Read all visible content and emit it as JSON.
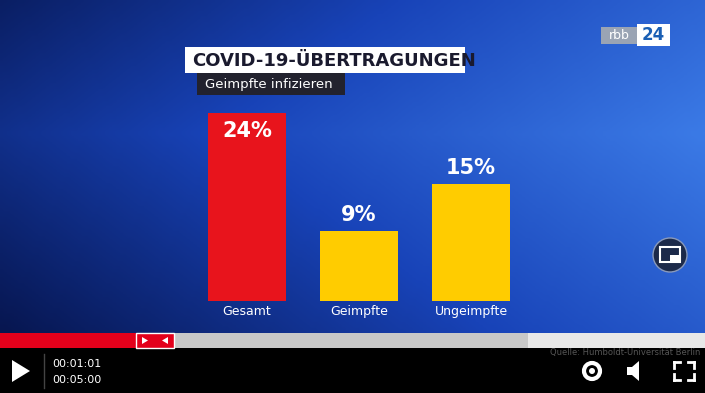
{
  "chart_data": {
    "type": "bar",
    "title": "COVID-19-ÜBERTRAGUNGEN",
    "subtitle": "Geimpfte infizieren",
    "categories": [
      "Gesamt",
      "Geimpfte",
      "Ungeimpfte"
    ],
    "values": [
      24,
      9,
      15
    ],
    "value_labels": [
      "24%",
      "9%",
      "15%"
    ],
    "colors": [
      "#e8141c",
      "#ffcc00",
      "#ffcc00"
    ],
    "ylim": [
      0,
      24
    ],
    "data_labels": true,
    "tick_labels": "x",
    "annotations": [
      "rbb",
      "24",
      "Quelle: Humboldt-Universität Berlin",
      "00:01:01",
      "00:05:00"
    ]
  }
}
